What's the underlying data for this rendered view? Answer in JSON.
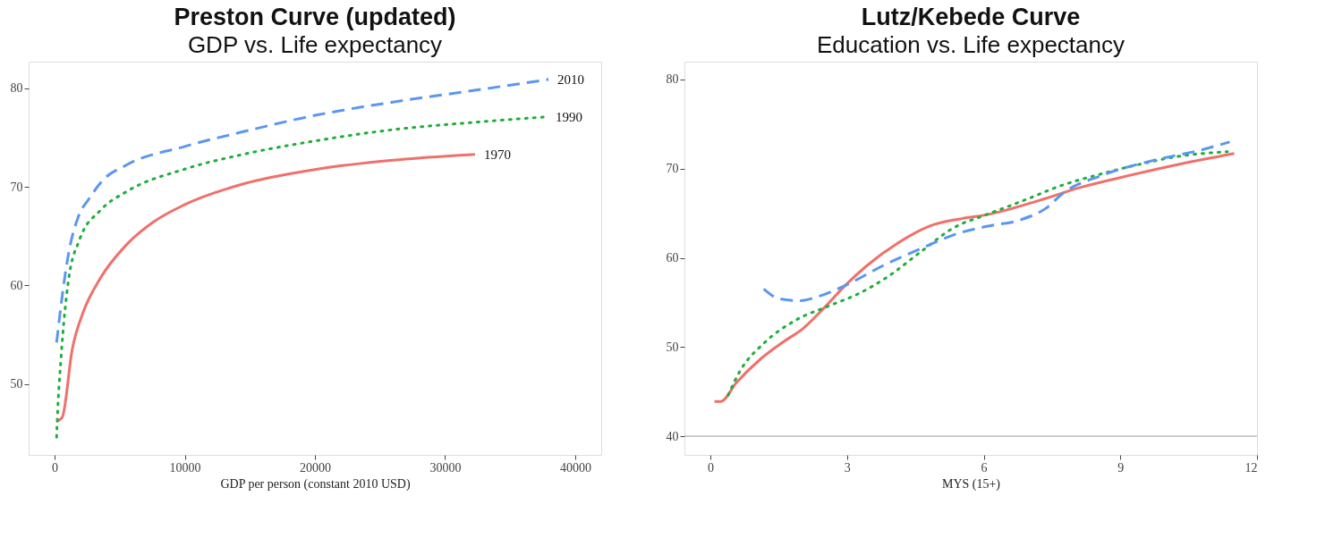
{
  "chart_data": [
    {
      "type": "line",
      "title": "Preston Curve (updated)",
      "subtitle": "GDP vs. Life expectancy",
      "xlabel": "GDP per person (constant 2010 USD)",
      "xlim": [
        -2000,
        42000
      ],
      "xticks": [
        0,
        10000,
        20000,
        30000,
        40000
      ],
      "ylim": [
        42.8,
        82.7
      ],
      "yticks": [
        50,
        60,
        70,
        80
      ],
      "grid": false,
      "series": [
        {
          "name": "1970",
          "color": "#f0706a",
          "line_style": "solid",
          "x": [
            150,
            580,
            1350,
            2200,
            3500,
            5500,
            7550,
            10000,
            14500,
            20200,
            26000,
            32300
          ],
          "values": [
            46.2,
            46.6,
            53.5,
            57.3,
            60.7,
            64.1,
            66.4,
            68.2,
            70.3,
            71.8,
            72.7,
            73.3
          ]
        },
        {
          "name": "1990",
          "color": "#1fae3a",
          "line_style": "dotted",
          "x": [
            150,
            200,
            500,
            1050,
            1900,
            3500,
            5500,
            10000,
            14500,
            20200,
            26000,
            31800,
            37800
          ],
          "values": [
            44.6,
            46.3,
            52.8,
            60.4,
            64.6,
            67.6,
            69.5,
            71.8,
            73.3,
            74.7,
            75.8,
            76.5,
            77.1
          ]
        },
        {
          "name": "2010",
          "color": "#5b97f0",
          "line_style": "dashed",
          "x": [
            150,
            500,
            1050,
            1800,
            2650,
            3650,
            5500,
            10000,
            14500,
            20200,
            26000,
            31800,
            37950
          ],
          "values": [
            54.2,
            58.1,
            63.1,
            66.9,
            68.8,
            70.6,
            72.2,
            74.1,
            75.6,
            77.3,
            78.6,
            79.7,
            80.9
          ]
        }
      ]
    },
    {
      "type": "line",
      "title": "Lutz/Kebede Curve",
      "subtitle": "Education vs. Life expectancy",
      "xlabel": "MYS (15+)",
      "xlim": [
        -0.57,
        12
      ],
      "xticks": [
        0,
        3,
        6,
        9,
        12
      ],
      "ylim": [
        37.9,
        82.0
      ],
      "yticks": [
        40,
        50,
        60,
        70,
        80
      ],
      "grid": false,
      "ref_lines": [
        {
          "axis": "y",
          "value": 40,
          "color": "#999999"
        }
      ],
      "series": [
        {
          "color": "#f0706a",
          "line_style": "solid",
          "x": [
            0.09,
            0.23,
            0.57,
            1.09,
            1.61,
            2.04,
            2.48,
            3.0,
            3.43,
            4.13,
            4.83,
            5.52,
            6.13,
            7.26,
            8.13,
            9.0,
            10.3,
            11.5
          ],
          "values": [
            43.9,
            43.9,
            46.0,
            48.6,
            50.6,
            52.1,
            54.3,
            57.1,
            59.1,
            61.7,
            63.6,
            64.4,
            64.9,
            66.5,
            67.9,
            69.0,
            70.5,
            71.7
          ]
        },
        {
          "color": "#1fae3a",
          "line_style": "dotted",
          "x": [
            0.39,
            0.65,
            1.17,
            1.87,
            2.65,
            3.26,
            3.87,
            4.65,
            5.35,
            6.04,
            6.91,
            7.7,
            8.57,
            9.43,
            10.3,
            11.35
          ],
          "values": [
            44.6,
            47.3,
            50.4,
            53.0,
            54.7,
            56.0,
            57.8,
            60.8,
            63.4,
            64.8,
            66.5,
            68.1,
            69.4,
            70.5,
            71.4,
            71.9
          ]
        },
        {
          "color": "#5b97f0",
          "line_style": "dashed",
          "x": [
            1.17,
            1.52,
            1.96,
            2.39,
            3.0,
            3.78,
            4.65,
            5.35,
            6.04,
            6.83,
            7.35,
            7.78,
            8.57,
            9.87,
            10.7,
            11.4
          ],
          "values": [
            56.5,
            55.4,
            55.2,
            55.7,
            57.0,
            59.1,
            61.1,
            62.6,
            63.5,
            64.3,
            65.5,
            67.4,
            69.2,
            71.1,
            72.0,
            73.0
          ]
        }
      ]
    }
  ]
}
